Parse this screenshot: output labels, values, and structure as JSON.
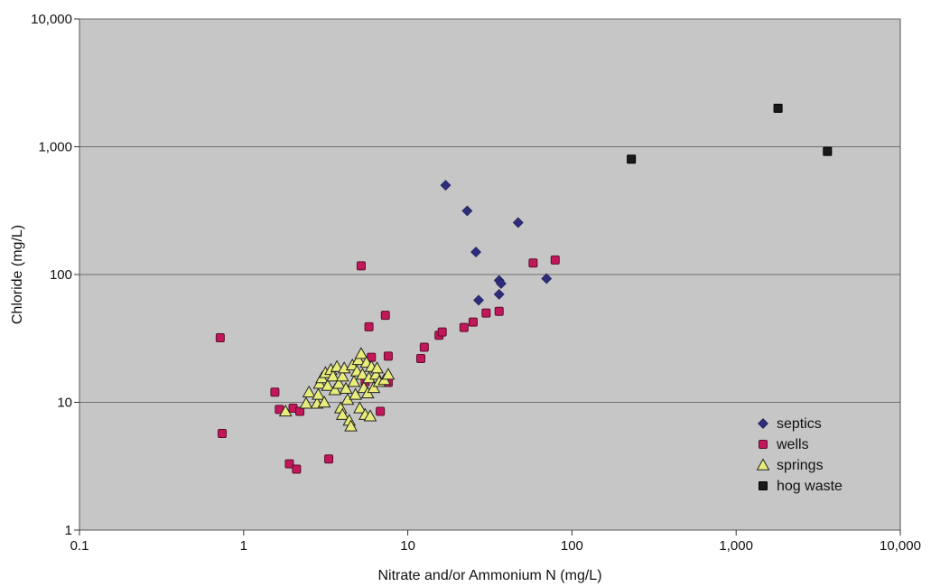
{
  "chart_data": {
    "type": "scatter",
    "title": "",
    "xlabel": "Nitrate and/or Ammonium N (mg/L)",
    "ylabel": "Chloride (mg/L)",
    "xscale": "log",
    "yscale": "log",
    "xlim": [
      0.1,
      10000
    ],
    "ylim": [
      1,
      10000
    ],
    "x_ticks": [
      0.1,
      1,
      10,
      100,
      1000,
      10000
    ],
    "x_tick_labels": [
      "0.1",
      "1",
      "10",
      "100",
      "1,000",
      "10,000"
    ],
    "y_ticks": [
      1,
      10,
      100,
      1000,
      10000
    ],
    "y_tick_labels": [
      "1",
      "10",
      "100",
      "1,000",
      "10,000"
    ],
    "grid": "horizontal major lines",
    "legend_position": "bottom-right",
    "plot_background": "#c6c6c6",
    "series": [
      {
        "name": "septics",
        "marker": "diamond",
        "color": "#2e2d7a",
        "points": [
          [
            17,
            500
          ],
          [
            23,
            315
          ],
          [
            26,
            150
          ],
          [
            27,
            63
          ],
          [
            36,
            90
          ],
          [
            37,
            85
          ],
          [
            36,
            70
          ],
          [
            47,
            255
          ],
          [
            70,
            93
          ]
        ]
      },
      {
        "name": "wells",
        "marker": "square",
        "color": "#c2185b",
        "points": [
          [
            0.72,
            32
          ],
          [
            0.74,
            5.7
          ],
          [
            1.55,
            12
          ],
          [
            1.65,
            8.8
          ],
          [
            1.9,
            3.3
          ],
          [
            2.0,
            9.0
          ],
          [
            2.1,
            3.0
          ],
          [
            2.2,
            8.5
          ],
          [
            3.3,
            3.6
          ],
          [
            5.2,
            117
          ],
          [
            5.5,
            14.5
          ],
          [
            5.8,
            39
          ],
          [
            6.0,
            22.5
          ],
          [
            6.8,
            8.5
          ],
          [
            7.3,
            48
          ],
          [
            7.6,
            23
          ],
          [
            7.6,
            14.3
          ],
          [
            12,
            22
          ],
          [
            12.6,
            27
          ],
          [
            15.5,
            33.5
          ],
          [
            16.2,
            35.5
          ],
          [
            22,
            38.5
          ],
          [
            25,
            42.5
          ],
          [
            30,
            50
          ],
          [
            36,
            51.5
          ],
          [
            58,
            123
          ],
          [
            79,
            130
          ]
        ]
      },
      {
        "name": "springs",
        "marker": "triangle",
        "color": "#e8ec7a",
        "points": [
          [
            1.8,
            8.5
          ],
          [
            2.4,
            9.8
          ],
          [
            2.5,
            12
          ],
          [
            2.8,
            9.8
          ],
          [
            2.85,
            11.5
          ],
          [
            2.9,
            14
          ],
          [
            3.0,
            15.5
          ],
          [
            3.1,
            10
          ],
          [
            3.15,
            17
          ],
          [
            3.25,
            13.5
          ],
          [
            3.4,
            18
          ],
          [
            3.5,
            16
          ],
          [
            3.6,
            12.5
          ],
          [
            3.7,
            19
          ],
          [
            3.8,
            14
          ],
          [
            3.9,
            9
          ],
          [
            4.0,
            16
          ],
          [
            4.0,
            8
          ],
          [
            4.1,
            18.5
          ],
          [
            4.2,
            12.8
          ],
          [
            4.3,
            10.5
          ],
          [
            4.4,
            7.2
          ],
          [
            4.5,
            6.5
          ],
          [
            4.6,
            19.5
          ],
          [
            4.7,
            14.5
          ],
          [
            4.8,
            11.5
          ],
          [
            4.9,
            17.5
          ],
          [
            5.0,
            21.5
          ],
          [
            5.1,
            9
          ],
          [
            5.2,
            24
          ],
          [
            5.3,
            16.5
          ],
          [
            5.4,
            13
          ],
          [
            5.5,
            8
          ],
          [
            5.6,
            20.5
          ],
          [
            5.7,
            11.8
          ],
          [
            5.8,
            15.5
          ],
          [
            5.9,
            7.8
          ],
          [
            6.0,
            19
          ],
          [
            6.2,
            13
          ],
          [
            6.4,
            16.5
          ],
          [
            6.5,
            18.5
          ],
          [
            6.7,
            14.5
          ],
          [
            7.2,
            15
          ],
          [
            7.6,
            16.5
          ]
        ]
      },
      {
        "name": "hog waste",
        "marker": "square",
        "color": "#1a1a1a",
        "points": [
          [
            230,
            800
          ],
          [
            1800,
            2000
          ],
          [
            3600,
            920
          ]
        ]
      }
    ]
  }
}
